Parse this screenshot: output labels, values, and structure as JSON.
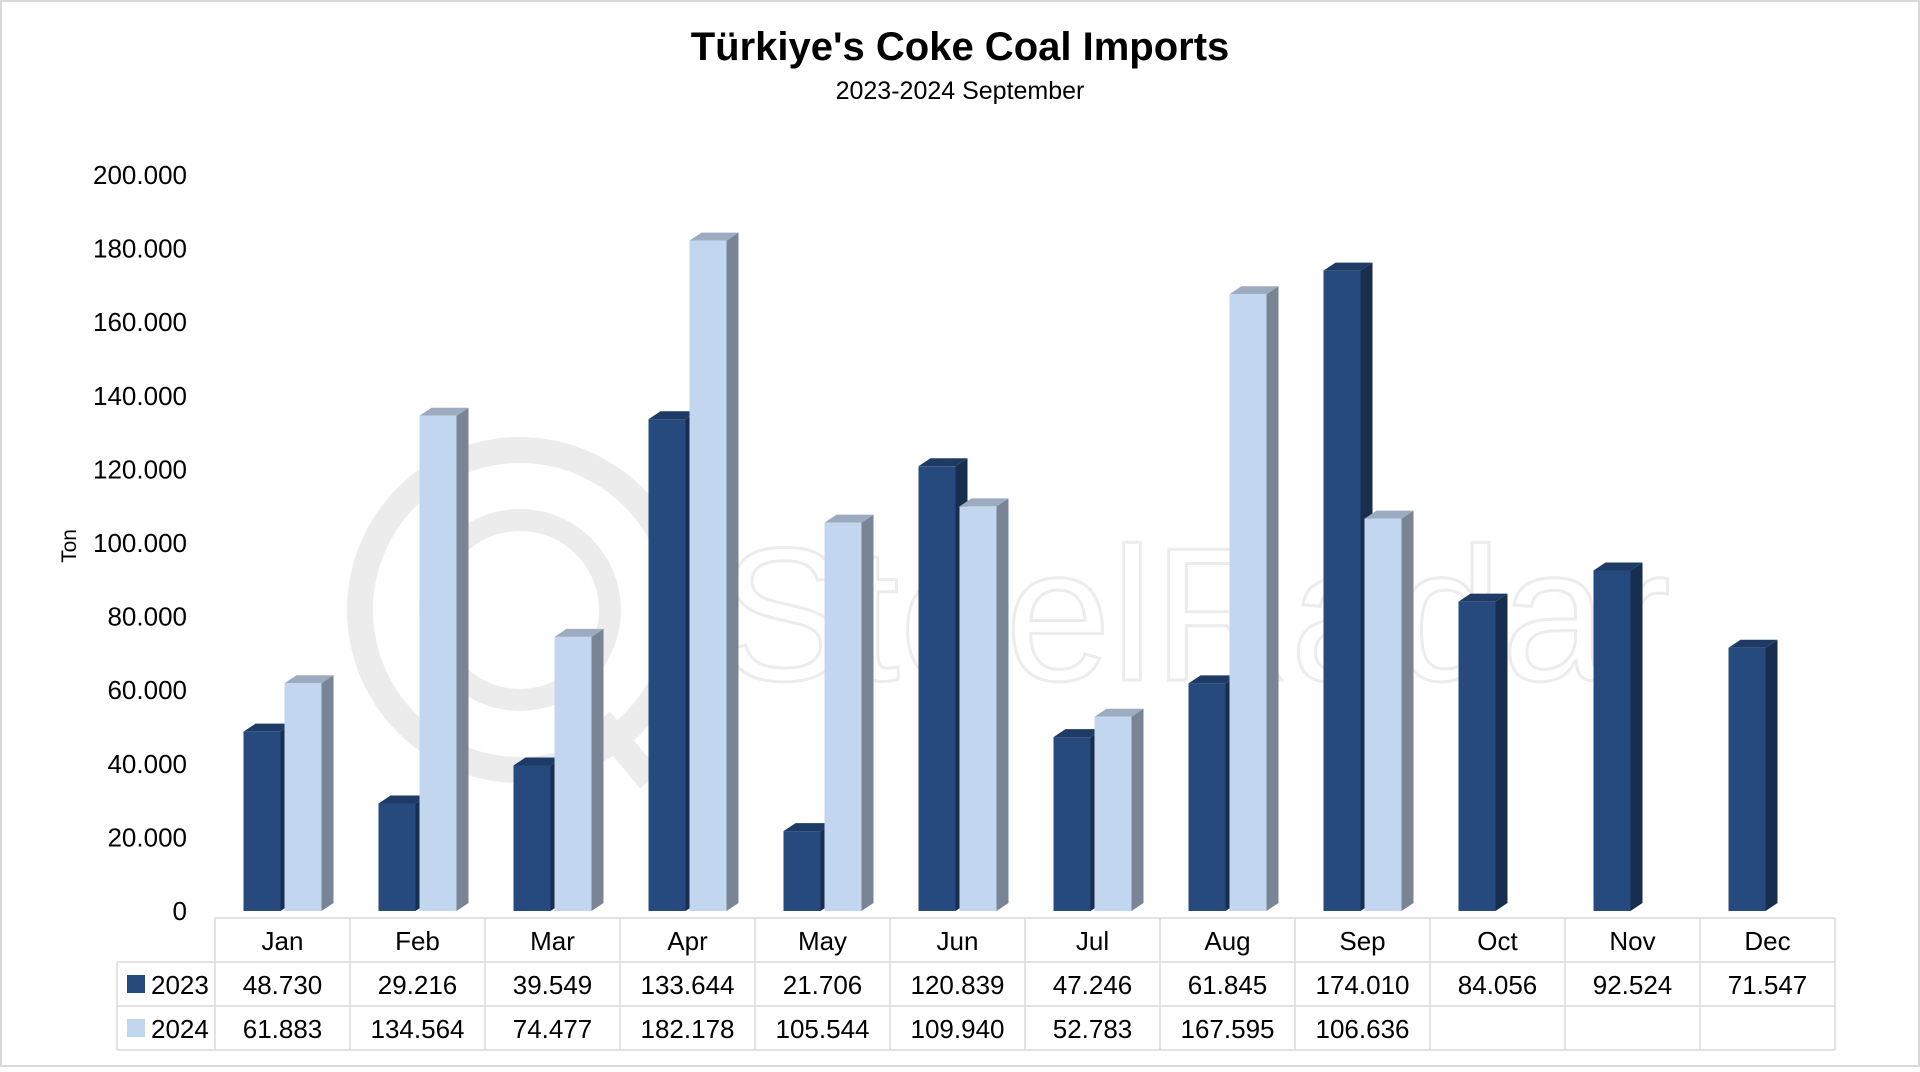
{
  "chart_data": {
    "type": "bar",
    "title": "Türkiye's Coke Coal Imports",
    "subtitle": "2023-2024 September",
    "ylabel": "Ton",
    "xlabel": "",
    "ylim": [
      0,
      200000
    ],
    "yticks": [
      0,
      20000,
      40000,
      60000,
      80000,
      100000,
      120000,
      140000,
      160000,
      180000,
      200000
    ],
    "ytick_labels": [
      "0",
      "20.000",
      "40.000",
      "60.000",
      "80.000",
      "100.000",
      "120.000",
      "140.000",
      "160.000",
      "180.000",
      "200.000"
    ],
    "grid": false,
    "legend": "data-table",
    "categories": [
      "Jan",
      "Feb",
      "Mar",
      "Apr",
      "May",
      "Jun",
      "Jul",
      "Aug",
      "Sep",
      "Oct",
      "Nov",
      "Dec"
    ],
    "series": [
      {
        "name": "2023",
        "color": "#264a7e",
        "values": [
          48730,
          29216,
          39549,
          133644,
          21706,
          120839,
          47246,
          61845,
          174010,
          84056,
          92524,
          71547
        ],
        "labels": [
          "48.730",
          "29.216",
          "39.549",
          "133.644",
          "21.706",
          "120.839",
          "47.246",
          "61.845",
          "174.010",
          "84.056",
          "92.524",
          "71.547"
        ]
      },
      {
        "name": "2024",
        "color": "#c3d6ef",
        "values": [
          61883,
          134564,
          74477,
          182178,
          105544,
          109940,
          52783,
          167595,
          106636,
          null,
          null,
          null
        ],
        "labels": [
          "61.883",
          "134.564",
          "74.477",
          "182.178",
          "105.544",
          "109.940",
          "52.783",
          "167.595",
          "106.636",
          "",
          "",
          ""
        ]
      }
    ]
  },
  "watermark": {
    "text": "SteelRadar",
    "icon": "magnifier-watermark-icon"
  }
}
